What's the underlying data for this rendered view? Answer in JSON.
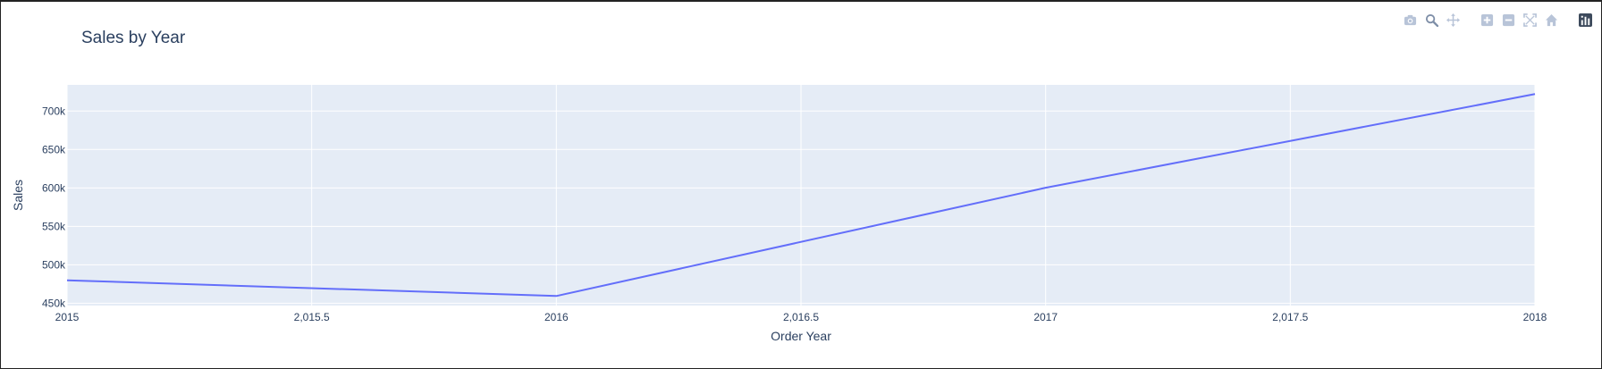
{
  "modebar": {
    "buttons": [
      "camera-icon",
      "zoom-icon",
      "pan-icon",
      "zoom-in-icon",
      "zoom-out-icon",
      "autoscale-icon",
      "reset-axes-icon",
      "plotly-logo-icon"
    ]
  },
  "colors": {
    "plot_bg": "#e5ecf6",
    "grid": "#ffffff",
    "line": "#636efa",
    "text": "#2a3f5f",
    "modebar_icon": "#b8c4d8"
  },
  "chart_data": {
    "type": "line",
    "title": "Sales by Year",
    "xlabel": "Order Year",
    "ylabel": "Sales",
    "x": [
      2015,
      2016,
      2017,
      2018
    ],
    "series": [
      {
        "values": [
          479856,
          459436,
          600193,
          722052
        ]
      }
    ],
    "xlim": [
      2015,
      2018
    ],
    "ylim": [
      447000,
      734000
    ],
    "xticks": [
      2015,
      2015.5,
      2016,
      2016.5,
      2017,
      2017.5,
      2018
    ],
    "xtick_labels": [
      "2015",
      "2,015.5",
      "2016",
      "2,016.5",
      "2017",
      "2,017.5",
      "2018"
    ],
    "yticks": [
      450000,
      500000,
      550000,
      600000,
      650000,
      700000
    ],
    "ytick_labels": [
      "450k",
      "500k",
      "550k",
      "600k",
      "650k",
      "700k"
    ],
    "grid": true,
    "legend": false
  }
}
